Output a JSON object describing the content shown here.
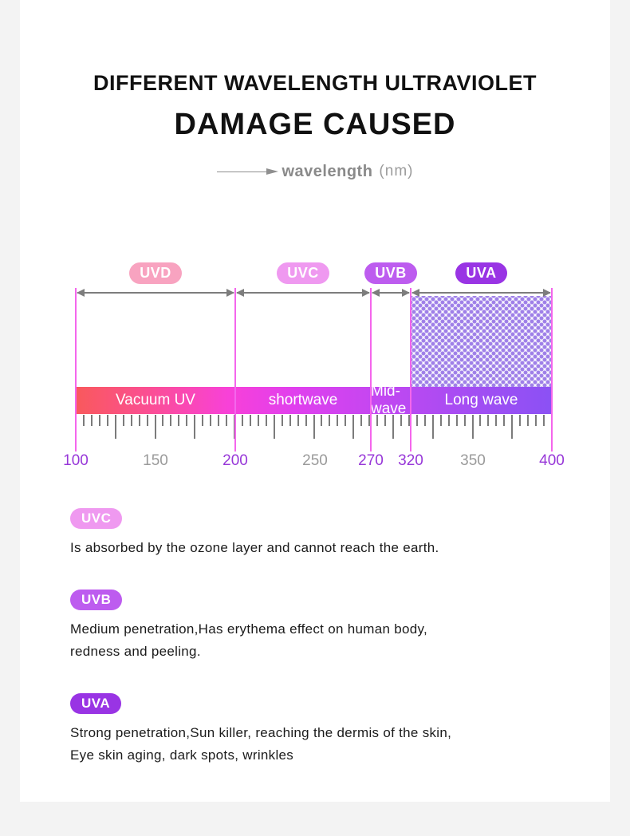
{
  "header": {
    "title_line1": "DIFFERENT WAVELENGTH ULTRAVIOLET",
    "title_line2": "DAMAGE CAUSED",
    "axis_caption_word": "wavelength",
    "axis_caption_unit": "(nm)"
  },
  "diagram": {
    "bands": [
      {
        "label": "UVD",
        "color": "#f8a3c0",
        "segment_label": "Vacuum UV",
        "range_nm": [
          100,
          200
        ]
      },
      {
        "label": "UVC",
        "color": "#ef99f0",
        "segment_label": "shortwave",
        "range_nm": [
          200,
          270
        ]
      },
      {
        "label": "UVB",
        "color": "#bd5cef",
        "segment_label": "Mid-wave",
        "range_nm": [
          270,
          320
        ]
      },
      {
        "label": "UVA",
        "color": "#9934e4",
        "segment_label": "Long wave",
        "range_nm": [
          320,
          400
        ]
      }
    ],
    "scale_labels": [
      {
        "text": "100",
        "highlight": true
      },
      {
        "text": "150",
        "highlight": false
      },
      {
        "text": "200",
        "highlight": true
      },
      {
        "text": "250",
        "highlight": false
      },
      {
        "text": "270",
        "highlight": true
      },
      {
        "text": "320",
        "highlight": true
      },
      {
        "text": "350",
        "highlight": false
      },
      {
        "text": "400",
        "highlight": true
      }
    ],
    "colors": {
      "guide_line": "#f466ec",
      "arrow": "#7d7d7d",
      "highlight_number": "#9737d8",
      "plain_number": "#9a9a9a"
    }
  },
  "descriptions": [
    {
      "badge": "UVC",
      "color": "#ef99f0",
      "line1": "Is absorbed by the ozone layer and cannot reach the earth.",
      "line2": ""
    },
    {
      "badge": "UVB",
      "color": "#bd5cef",
      "line1": "Medium penetration,Has erythema effect on human body,",
      "line2": "redness and peeling."
    },
    {
      "badge": "UVA",
      "color": "#9934e4",
      "line1": "Strong penetration,Sun killer, reaching the dermis of the skin,",
      "line2": "Eye skin aging, dark spots, wrinkles"
    }
  ]
}
